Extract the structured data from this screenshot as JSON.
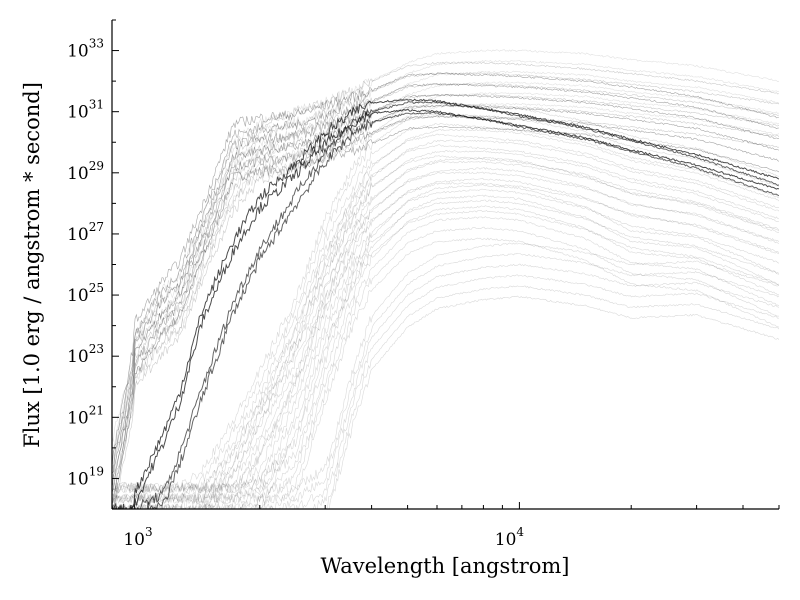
{
  "chart_data": {
    "type": "line",
    "xlabel": "Wavelength [angstrom]",
    "ylabel": "Flux [1.0 erg / angstrom * second]",
    "xscale": "log",
    "yscale": "log",
    "xlim": [
      800,
      50000
    ],
    "ylim": [
      1e+18,
      1e+34
    ],
    "grid": false,
    "legend": "none",
    "line_color": "#000000",
    "x_ticks": [
      {
        "base": "10",
        "exp": "3",
        "value": 1000
      },
      {
        "base": "10",
        "exp": "4",
        "value": 10000
      }
    ],
    "y_ticks": [
      {
        "base": "10",
        "exp": "19",
        "value": 1e+19
      },
      {
        "base": "10",
        "exp": "21",
        "value": 1e+21
      },
      {
        "base": "10",
        "exp": "23",
        "value": 1e+23
      },
      {
        "base": "10",
        "exp": "25",
        "value": 1e+25
      },
      {
        "base": "10",
        "exp": "27",
        "value": 1e+27
      },
      {
        "base": "10",
        "exp": "29",
        "value": 1e+29
      },
      {
        "base": "10",
        "exp": "31",
        "value": 1e+31
      },
      {
        "base": "10",
        "exp": "33",
        "value": 1e+33
      }
    ],
    "series_shape": {
      "x": [
        800,
        912,
        920,
        1100,
        1216,
        1400,
        1700,
        2000,
        2500,
        3000,
        3600,
        4000,
        5000,
        6000,
        8000,
        10000,
        15000,
        20000,
        30000,
        50000
      ],
      "templates": [
        {
          "name": "",
          "log_flux": [
            18.8,
            22.6,
            23.4,
            24.8,
            25.4,
            27.2,
            29.9,
            30.1,
            30.2,
            30.5,
            30.8,
            31.0,
            31.5,
            31.55,
            31.5,
            31.45,
            31.3,
            31.1,
            30.8,
            30.1
          ],
          "opacity": 0.35
        },
        {
          "name": "",
          "log_flux": [
            18.0,
            18.0,
            18.5,
            20.5,
            21.8,
            24.5,
            26.8,
            28.2,
            29.3,
            30.3,
            31.0,
            31.3,
            31.4,
            31.35,
            31.1,
            30.9,
            30.5,
            30.1,
            29.6,
            28.8
          ],
          "opacity": 0.7
        },
        {
          "name": "",
          "log_flux": [
            18.0,
            18.0,
            18.0,
            18.5,
            19.8,
            22.0,
            24.8,
            26.5,
            28.3,
            29.7,
            30.7,
            31.0,
            31.3,
            31.3,
            31.1,
            30.85,
            30.45,
            30.05,
            29.5,
            28.6
          ],
          "opacity": 0.6
        },
        {
          "name": "",
          "log_flux": [
            18.0,
            18.0,
            18.0,
            18.0,
            18.0,
            18.6,
            20.2,
            21.8,
            24.2,
            26.8,
            28.6,
            29.6,
            30.4,
            30.6,
            30.5,
            30.4,
            30.0,
            29.5,
            29.1,
            28.2
          ],
          "opacity": 0.15
        },
        {
          "name": "",
          "log_flux": [
            18.0,
            18.0,
            18.0,
            18.0,
            18.0,
            18.0,
            18.0,
            18.3,
            19.5,
            22.5,
            25.2,
            26.2,
            27.4,
            27.8,
            27.9,
            27.8,
            27.2,
            26.4,
            26.2,
            25.0
          ],
          "opacity": 0.15
        },
        {
          "name": "",
          "log_flux": [
            18.0,
            18.0,
            18.0,
            18.0,
            18.0,
            18.0,
            18.0,
            18.0,
            18.0,
            18.6,
            22.0,
            23.6,
            25.0,
            25.6,
            25.9,
            26.0,
            25.7,
            25.3,
            25.4,
            24.6
          ],
          "opacity": 0.15
        },
        {
          "name": "",
          "log_flux": [
            18.8,
            22.0,
            23.0,
            24.2,
            24.6,
            26.5,
            28.8,
            29.8,
            30.3,
            30.6,
            31.0,
            31.3,
            31.8,
            31.9,
            31.9,
            31.85,
            31.7,
            31.55,
            31.3,
            30.9
          ],
          "opacity": 0.2
        },
        {
          "name": "",
          "log_flux": [
            18.0,
            18.0,
            18.0,
            18.0,
            18.0,
            18.0,
            19.2,
            20.8,
            23.2,
            25.6,
            27.6,
            28.5,
            29.4,
            29.7,
            29.7,
            29.6,
            29.2,
            28.7,
            28.3,
            27.4
          ],
          "opacity": 0.15
        },
        {
          "name": "",
          "log_flux": [
            18.0,
            18.0,
            18.0,
            18.0,
            18.0,
            18.0,
            18.0,
            19.0,
            21.5,
            24.5,
            26.5,
            27.4,
            28.4,
            28.7,
            28.8,
            28.7,
            28.2,
            27.6,
            27.3,
            26.4
          ],
          "opacity": 0.15
        },
        {
          "name": "",
          "log_flux": [
            19.5,
            22.3,
            23.1,
            24.5,
            24.9,
            26.8,
            29.3,
            30.0,
            30.3,
            30.6,
            31.0,
            31.3,
            31.9,
            32.2,
            32.3,
            32.3,
            32.2,
            32.0,
            31.8,
            31.3
          ],
          "opacity": 0.12
        }
      ]
    }
  }
}
